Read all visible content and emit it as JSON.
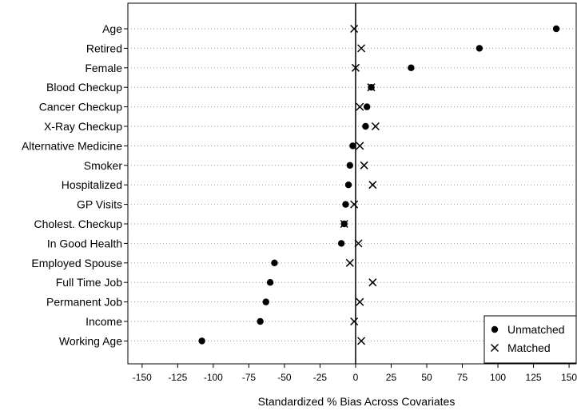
{
  "chart_data": {
    "type": "scatter",
    "orientation": "horizontal",
    "title": "",
    "xlabel": "Standardized % Bias Across Covariates",
    "ylabel": "",
    "xlim": [
      -160,
      155
    ],
    "xticks": [
      -150,
      -125,
      -100,
      -75,
      -50,
      -25,
      0,
      25,
      50,
      75,
      100,
      125,
      150
    ],
    "xtick_labels": [
      "-150",
      "-125",
      "-100",
      "-75",
      "-50",
      "-25",
      "0",
      "25",
      "50",
      "75",
      "100",
      "125",
      "150"
    ],
    "zero_line": 0,
    "grid": "dotted horizontal lines per covariate",
    "legend_position": "bottom-right",
    "categories": [
      "Age",
      "Retired",
      "Female",
      "Blood Checkup",
      "Cancer Checkup",
      "X-Ray Checkup",
      "Alternative Medicine",
      "Smoker",
      "Hospitalized",
      "GP Visits",
      "Cholest. Checkup",
      "In Good Health",
      "Employed Spouse",
      "Full Time Job",
      "Permanent Job",
      "Income",
      "Working Age"
    ],
    "series": [
      {
        "name": "Unmatched",
        "marker": "filled-circle",
        "color": "#000000",
        "values": [
          141,
          87,
          39,
          11,
          8,
          7,
          -2,
          -4,
          -5,
          -7,
          -8,
          -10,
          -57,
          -60,
          -63,
          -67,
          -108
        ]
      },
      {
        "name": "Matched",
        "marker": "x",
        "color": "#000000",
        "values": [
          -1,
          4,
          0,
          11,
          3,
          14,
          3,
          6,
          12,
          -1,
          -8,
          2,
          -4,
          12,
          3,
          -1,
          4
        ]
      }
    ]
  }
}
